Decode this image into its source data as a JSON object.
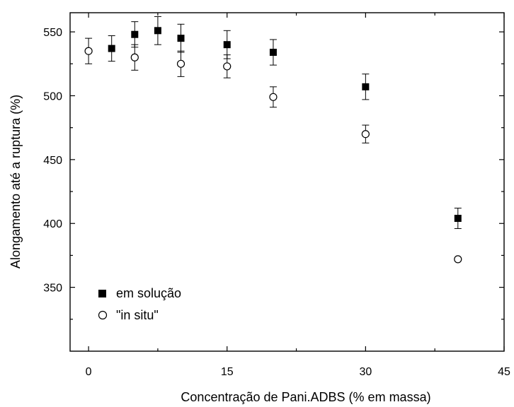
{
  "chart_data": {
    "type": "scatter",
    "xlabel": "Concentração de Pani.ADBS (% em massa)",
    "ylabel": "Alongamento até a ruptura (%)",
    "xlim": [
      -2,
      45
    ],
    "ylim": [
      300,
      565
    ],
    "x_ticks": [
      0,
      15,
      30,
      45
    ],
    "y_ticks": [
      350,
      400,
      450,
      500,
      550
    ],
    "grid": false,
    "legend_position": "bottom-left",
    "series": [
      {
        "name": "em solução",
        "marker": "filled-square",
        "points": [
          {
            "x": 2.5,
            "y": 537,
            "err": 10
          },
          {
            "x": 5,
            "y": 548,
            "err": 10
          },
          {
            "x": 7.5,
            "y": 551,
            "err": 11
          },
          {
            "x": 10,
            "y": 545,
            "err": 11
          },
          {
            "x": 15,
            "y": 540,
            "err": 11
          },
          {
            "x": 20,
            "y": 534,
            "err": 10
          },
          {
            "x": 30,
            "y": 507,
            "err": 10
          },
          {
            "x": 40,
            "y": 404,
            "err": 8
          }
        ]
      },
      {
        "name": "\"in situ\"",
        "marker": "open-circle",
        "points": [
          {
            "x": 0,
            "y": 535,
            "err": 10
          },
          {
            "x": 5,
            "y": 530,
            "err": 10
          },
          {
            "x": 10,
            "y": 525,
            "err": 10
          },
          {
            "x": 15,
            "y": 523,
            "err": 9
          },
          {
            "x": 20,
            "y": 499,
            "err": 8
          },
          {
            "x": 30,
            "y": 470,
            "err": 7
          },
          {
            "x": 40,
            "y": 372,
            "err": 0
          }
        ]
      }
    ],
    "colors": {
      "axis": "#000000",
      "marker": "#000000",
      "background": "#ffffff"
    }
  }
}
